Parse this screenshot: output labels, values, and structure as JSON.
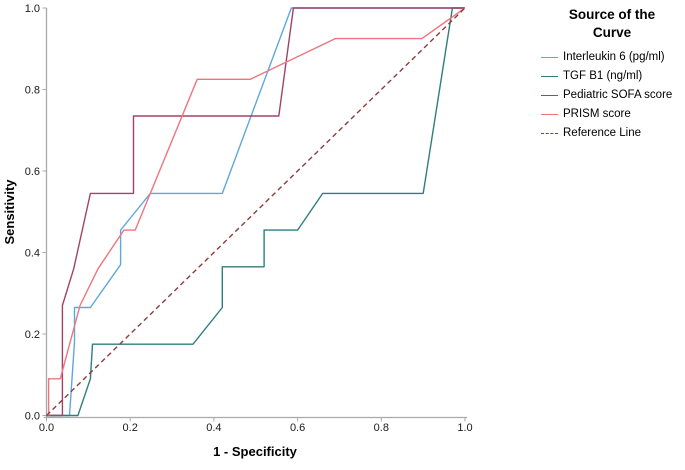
{
  "legend": {
    "title": "Source of the Curve",
    "items": [
      {
        "key": "interleukin6",
        "label": "Interleukin 6 (pg/ml)",
        "color": "#5FA8DC",
        "dashed": false
      },
      {
        "key": "tgfb1",
        "label": "TGF B1 (ng/ml)",
        "color": "#2F7E7E",
        "dashed": false
      },
      {
        "key": "sofa",
        "label": "Pediatric SOFA score",
        "color": "#A34269",
        "dashed": false
      },
      {
        "key": "prism",
        "label": "PRISM score",
        "color": "#F0747C",
        "dashed": false
      },
      {
        "key": "reference",
        "label": "Reference Line",
        "color": "#8E3B3B",
        "dashed": true
      }
    ]
  },
  "chart_data": {
    "type": "line",
    "title": "",
    "xlabel": "1 - Specificity",
    "ylabel": "Sensitivity",
    "xlim": [
      0,
      1
    ],
    "ylim": [
      0,
      1
    ],
    "grid": false,
    "legend_position": "right",
    "xticks": [
      "0.0",
      "0.2",
      "0.4",
      "0.6",
      "0.8",
      "1.0"
    ],
    "yticks": [
      "0.0",
      "0.2",
      "0.4",
      "0.6",
      "0.8",
      "1.0"
    ],
    "axis_color": "#A9A9A9",
    "series": [
      {
        "key": "interleukin6",
        "name": "Interleukin 6 (pg/ml)",
        "color": "#5FA8DC",
        "dashed": false,
        "points": [
          [
            0,
            0
          ],
          [
            0.055,
            0
          ],
          [
            0.067,
            0.18
          ],
          [
            0.067,
            0.265
          ],
          [
            0.105,
            0.265
          ],
          [
            0.177,
            0.37
          ],
          [
            0.177,
            0.455
          ],
          [
            0.248,
            0.545
          ],
          [
            0.42,
            0.545
          ],
          [
            0.585,
            1.0
          ],
          [
            1,
            1
          ]
        ]
      },
      {
        "key": "tgfb1",
        "name": "TGF B1 (ng/ml)",
        "color": "#2F7E7E",
        "dashed": false,
        "points": [
          [
            0,
            0
          ],
          [
            0.075,
            0
          ],
          [
            0.105,
            0.09
          ],
          [
            0.11,
            0.175
          ],
          [
            0.35,
            0.175
          ],
          [
            0.42,
            0.265
          ],
          [
            0.42,
            0.365
          ],
          [
            0.52,
            0.365
          ],
          [
            0.52,
            0.455
          ],
          [
            0.6,
            0.455
          ],
          [
            0.66,
            0.545
          ],
          [
            0.9,
            0.545
          ],
          [
            0.97,
            1.0
          ],
          [
            1,
            1
          ]
        ]
      },
      {
        "key": "sofa",
        "name": "Pediatric SOFA score",
        "color": "#A34269",
        "dashed": false,
        "points": [
          [
            0,
            0
          ],
          [
            0.038,
            0
          ],
          [
            0.038,
            0.27
          ],
          [
            0.065,
            0.36
          ],
          [
            0.105,
            0.545
          ],
          [
            0.208,
            0.545
          ],
          [
            0.208,
            0.735
          ],
          [
            0.555,
            0.735
          ],
          [
            0.59,
            1.0
          ],
          [
            1,
            1
          ]
        ]
      },
      {
        "key": "prism",
        "name": "PRISM score",
        "color": "#F0747C",
        "dashed": false,
        "points": [
          [
            0.005,
            0
          ],
          [
            0.005,
            0.09
          ],
          [
            0.033,
            0.09
          ],
          [
            0.08,
            0.27
          ],
          [
            0.123,
            0.36
          ],
          [
            0.185,
            0.455
          ],
          [
            0.212,
            0.455
          ],
          [
            0.36,
            0.825
          ],
          [
            0.487,
            0.825
          ],
          [
            0.69,
            0.925
          ],
          [
            0.897,
            0.925
          ],
          [
            1,
            1
          ]
        ]
      },
      {
        "key": "reference",
        "name": "Reference Line",
        "color": "#8E3B3B",
        "dashed": true,
        "points": [
          [
            0,
            0
          ],
          [
            1,
            1
          ]
        ]
      }
    ]
  }
}
